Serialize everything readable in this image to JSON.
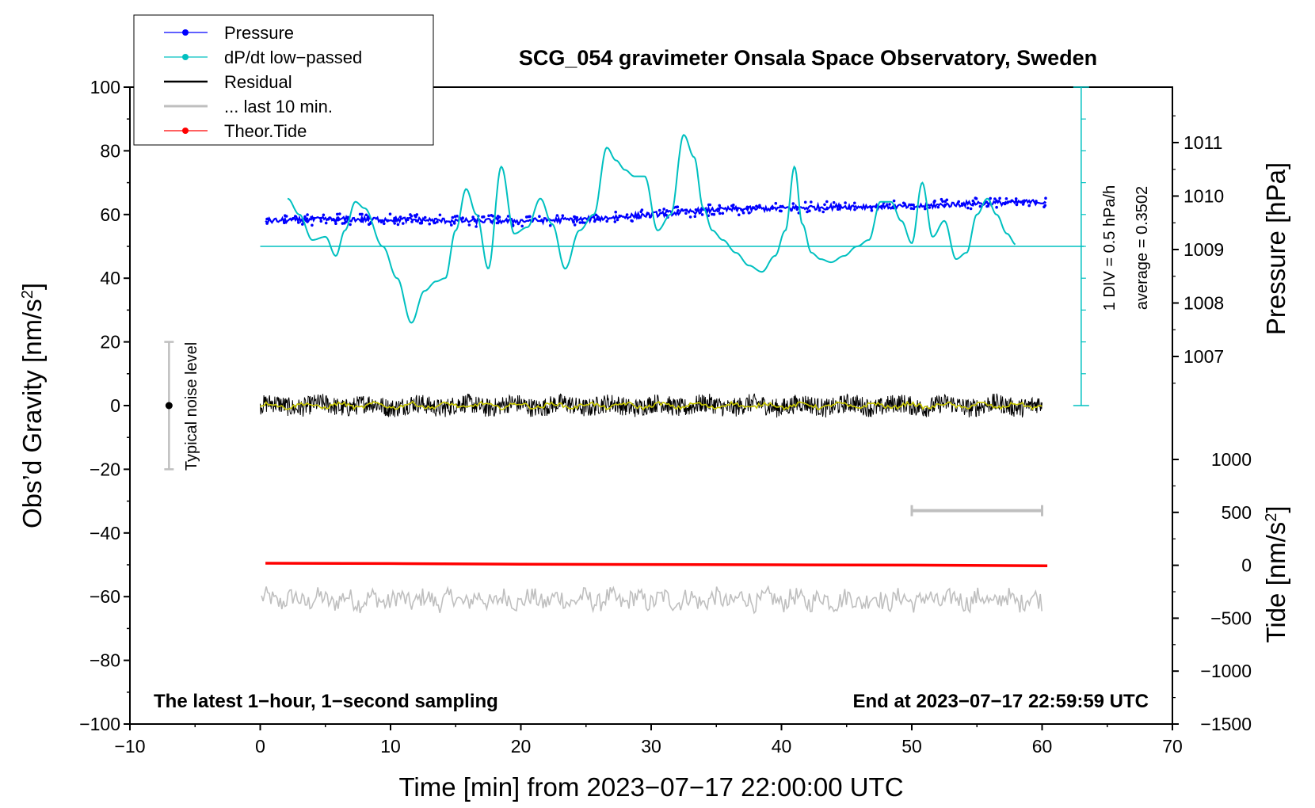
{
  "chart_data": {
    "type": "line",
    "title": "SCG_054 gravimeter Onsala Space Observatory, Sweden",
    "xlabel": "Time [min] from 2023−07−17 22:00:00 UTC",
    "ylabel_left": "Obs’d Gravity [nm/s",
    "ylabel_left_sup": "2",
    "ylabel_left_close": "]",
    "ylabel_pressure": "Pressure [hPa]",
    "ylabel_tide": "Tide [nm/s",
    "ylabel_tide_sup": "2",
    "ylabel_tide_close": "]",
    "xlim": [
      -10,
      70
    ],
    "ylim": [
      -100,
      100
    ],
    "xticks": [
      "−10",
      "0",
      "10",
      "20",
      "30",
      "40",
      "50",
      "60",
      "70"
    ],
    "yticks": [
      "100",
      "80",
      "60",
      "40",
      "20",
      "0",
      "−20",
      "−40",
      "−60",
      "−80",
      "−100"
    ],
    "pressure_ticks": [
      "1011",
      "1010",
      "1009",
      "1008",
      "1007"
    ],
    "pressure_values": [
      1011,
      1010,
      1009,
      1008,
      1007
    ],
    "tide_ticks": [
      "1000",
      "500",
      "0",
      "−500",
      "−1000",
      "−1500"
    ],
    "tide_values": [
      1000,
      500,
      0,
      -500,
      -1000,
      -1500
    ],
    "legend": [
      {
        "label": "Pressure",
        "color": "#0000ff",
        "marker": true
      },
      {
        "label": "dP/dt low−passed",
        "color": "#00c0c0",
        "marker": true
      },
      {
        "label": "Residual",
        "color": "#000000",
        "marker": false
      },
      {
        "label": "... last 10 min.",
        "color": "#bfbfbf",
        "marker": false
      },
      {
        "label": "Theor.Tide",
        "color": "#ff0000",
        "marker": true
      }
    ],
    "annotations": {
      "noise": "Typical noise level",
      "div": "1 DIV = 0.5 hPa/h",
      "average": "average = 0.3502",
      "bottom_left": "The latest 1−hour, 1−second sampling",
      "bottom_right": "End at 2023−07−17 22:59:59 UTC"
    },
    "noise_level": {
      "x": -7,
      "y": 0,
      "range": [
        -20,
        20
      ]
    },
    "last10_bar": {
      "x_range": [
        50,
        60
      ],
      "y": -33
    },
    "series": [
      {
        "name": "Pressure",
        "color": "#0000ff",
        "type": "scatter",
        "x": [
          0.4,
          5,
          10,
          15,
          20,
          25,
          30,
          35,
          40,
          45,
          50,
          55,
          60.4
        ],
        "y": [
          58,
          58.5,
          58.5,
          58,
          58,
          58.5,
          60,
          61.5,
          62,
          62.5,
          62.5,
          63.5,
          64
        ]
      },
      {
        "name": "dP/dt low−passed",
        "color": "#00c0c0",
        "type": "line",
        "baseline": 50,
        "x": [
          2.1,
          3,
          4,
          5,
          5.8,
          6.5,
          7.3,
          8,
          9.4,
          10.5,
          11.6,
          12.6,
          13.5,
          14.2,
          15,
          15.8,
          16.6,
          17.5,
          18.5,
          19.5,
          20.5,
          21.5,
          22.4,
          23.4,
          24.5,
          25.6,
          26.6,
          27.3,
          28,
          28.7,
          29.5,
          30.5,
          31.5,
          32.5,
          33.3,
          34,
          34.7,
          35.5,
          36.5,
          37.5,
          38.5,
          39.5,
          40.3,
          41,
          41.6,
          42.3,
          43,
          43.8,
          44.8,
          45.8,
          46.7,
          47.6,
          48.4,
          49.2,
          50,
          50.8,
          51.6,
          52.5,
          53.4,
          54.2,
          55,
          55.8,
          56.5,
          57.3,
          58
        ],
        "y": [
          65,
          60,
          52,
          53,
          47,
          55,
          64,
          62,
          50,
          40,
          26,
          36,
          39,
          40,
          55,
          68,
          60,
          43,
          75,
          54,
          56,
          65,
          57,
          43,
          55,
          60,
          81,
          77,
          74,
          72,
          72,
          55,
          60,
          85,
          78,
          62,
          55,
          52,
          48,
          44,
          42,
          47,
          55,
          75,
          57,
          48,
          46,
          45,
          47,
          50,
          52,
          64,
          64,
          58,
          51,
          70,
          53,
          58,
          46,
          48,
          60,
          65,
          60,
          54,
          50.5
        ]
      },
      {
        "name": "Residual",
        "color": "#000000",
        "type": "line",
        "x_range": [
          0,
          60
        ],
        "center": 0,
        "amplitude": 3
      },
      {
        "name": "Residual (smoothed)",
        "color": "#c8c800",
        "type": "line",
        "x_range": [
          0,
          60
        ],
        "center": 0,
        "amplitude": 1.2
      },
      {
        "name": "... last 10 min.",
        "color": "#bfbfbf",
        "type": "line",
        "x_range": [
          0.1,
          60
        ],
        "center": -61,
        "amplitude": 3
      },
      {
        "name": "Theor.Tide",
        "color": "#ff0000",
        "type": "line",
        "x": [
          0.4,
          10,
          20,
          30,
          40,
          50,
          60.4
        ],
        "y": [
          -49.5,
          -49.6,
          -49.8,
          -49.9,
          -50,
          -50.1,
          -50.3
        ]
      }
    ]
  }
}
